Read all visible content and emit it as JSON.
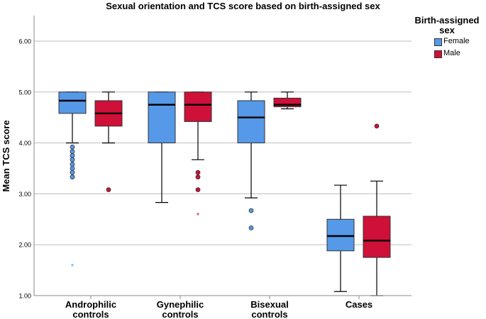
{
  "chart_data": {
    "type": "boxplot",
    "title": "Sexual orientation and TCS score based on birth-assigned sex",
    "ylabel": "Mean TCS score",
    "xlabel": "",
    "ylim": [
      1.0,
      6.5
    ],
    "yticks": [
      "1.00",
      "2.00",
      "3.00",
      "4.00",
      "5.00",
      "6.00"
    ],
    "grid": "horizontal",
    "legend_position": "right",
    "legend_title": "Birth-assigned sex",
    "categories": [
      {
        "line1": "Androphilic",
        "line2": "controls"
      },
      {
        "line1": "Gynephilic",
        "line2": "controls"
      },
      {
        "line1": "Bisexual",
        "line2": "controls"
      },
      {
        "line1": "Cases",
        "line2": ""
      }
    ],
    "series": [
      {
        "name": "Female",
        "color": "#5599e8",
        "boxes": [
          {
            "min": 4.0,
            "q1": 4.58,
            "median": 4.83,
            "q3": 5.0,
            "max": 5.0,
            "outliers": [
              3.92,
              3.83,
              3.75,
              3.67,
              3.58,
              3.5,
              3.42,
              3.33
            ],
            "extremes": [
              1.58
            ]
          },
          {
            "min": 2.83,
            "q1": 4.0,
            "median": 4.75,
            "q3": 5.0,
            "max": 5.0,
            "outliers": [],
            "extremes": []
          },
          {
            "min": 2.92,
            "q1": 4.0,
            "median": 4.5,
            "q3": 4.83,
            "max": 5.0,
            "outliers": [
              2.67,
              2.33
            ],
            "extremes": []
          },
          {
            "min": 1.08,
            "q1": 1.88,
            "median": 2.17,
            "q3": 2.5,
            "max": 3.17,
            "outliers": [],
            "extremes": []
          }
        ]
      },
      {
        "name": "Male",
        "color": "#cf1038",
        "boxes": [
          {
            "min": 4.0,
            "q1": 4.33,
            "median": 4.58,
            "q3": 4.83,
            "max": 5.0,
            "outliers": [
              3.08
            ],
            "extremes": []
          },
          {
            "min": 3.67,
            "q1": 4.42,
            "median": 4.75,
            "q3": 5.0,
            "max": 5.0,
            "outliers": [
              3.42,
              3.33,
              3.08
            ],
            "extremes": [
              2.58
            ]
          },
          {
            "min": 4.67,
            "q1": 4.71,
            "median": 4.75,
            "q3": 4.88,
            "max": 5.0,
            "outliers": [],
            "extremes": []
          },
          {
            "min": 1.0,
            "q1": 1.75,
            "median": 2.08,
            "q3": 2.56,
            "max": 3.25,
            "outliers": [
              4.33
            ],
            "extremes": []
          }
        ]
      }
    ]
  }
}
